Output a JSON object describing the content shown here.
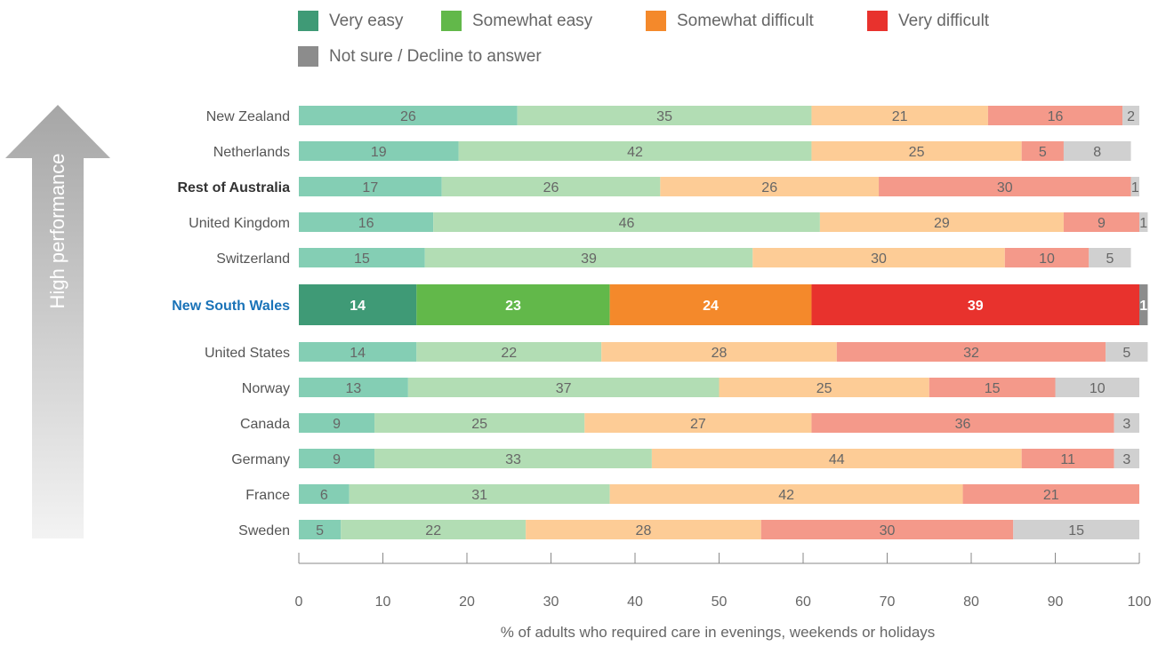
{
  "legend": [
    {
      "label": "Very easy",
      "color": "#3f9a76"
    },
    {
      "label": "Somewhat easy",
      "color": "#62b84a"
    },
    {
      "label": "Somewhat difficult",
      "color": "#f4892b"
    },
    {
      "label": "Very difficult",
      "color": "#e8322d"
    },
    {
      "label": "Not sure / Decline to answer",
      "color": "#8c8c8c"
    }
  ],
  "side_arrow_label": "High performance",
  "highlight_colors": [
    "#3f9a76",
    "#62b84a",
    "#f4892b",
    "#e8322d",
    "#8c8c8c"
  ],
  "muted_colors": [
    "#84ceb4",
    "#b2ddb4",
    "#fdcc96",
    "#f4998a",
    "#d0d0d0"
  ],
  "chart_data": {
    "type": "bar",
    "orientation": "horizontal",
    "stacked": true,
    "xlabel": "% of adults who required care in evenings, weekends or holidays",
    "xlim": [
      0,
      100
    ],
    "xticks": [
      0,
      10,
      20,
      30,
      40,
      50,
      60,
      70,
      80,
      90,
      100
    ],
    "categories": [
      "New Zealand",
      "Netherlands",
      "Rest of Australia",
      "United Kingdom",
      "Switzerland",
      "New South Wales",
      "United States",
      "Norway",
      "Canada",
      "Germany",
      "France",
      "Sweden"
    ],
    "bold_categories": [
      "Rest of Australia",
      "New South Wales"
    ],
    "highlight_category": "New South Wales",
    "series": [
      {
        "name": "Very easy",
        "values": [
          26,
          19,
          17,
          16,
          15,
          14,
          14,
          13,
          9,
          9,
          6,
          5
        ]
      },
      {
        "name": "Somewhat easy",
        "values": [
          35,
          42,
          26,
          46,
          39,
          23,
          22,
          37,
          25,
          33,
          31,
          22
        ]
      },
      {
        "name": "Somewhat difficult",
        "values": [
          21,
          25,
          26,
          29,
          30,
          24,
          28,
          25,
          27,
          44,
          42,
          28
        ]
      },
      {
        "name": "Very difficult",
        "values": [
          16,
          5,
          30,
          9,
          10,
          39,
          32,
          15,
          36,
          11,
          21,
          30
        ]
      },
      {
        "name": "Not sure / Decline to answer",
        "values": [
          2,
          8,
          1,
          1,
          5,
          1,
          5,
          10,
          3,
          3,
          null,
          15
        ]
      }
    ]
  }
}
